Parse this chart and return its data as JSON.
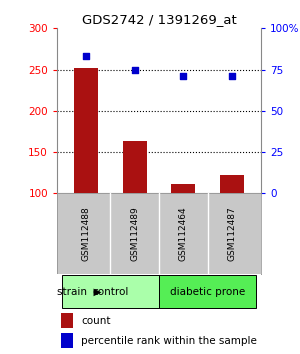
{
  "title": "GDS2742 / 1391269_at",
  "samples": [
    "GSM112488",
    "GSM112489",
    "GSM112464",
    "GSM112487"
  ],
  "counts": [
    252,
    163,
    111,
    122
  ],
  "percentiles": [
    83,
    75,
    71,
    71
  ],
  "ylim_left": [
    100,
    300
  ],
  "ylim_right": [
    0,
    100
  ],
  "yticks_left": [
    100,
    150,
    200,
    250,
    300
  ],
  "yticks_right": [
    0,
    25,
    50,
    75,
    100
  ],
  "yticklabels_right": [
    "0",
    "25",
    "50",
    "75",
    "100%"
  ],
  "bar_color": "#aa1111",
  "dot_color": "#0000cc",
  "bar_width": 0.5,
  "groups": [
    {
      "label": "control",
      "samples": [
        0,
        1
      ],
      "color": "#aaffaa"
    },
    {
      "label": "diabetic prone",
      "samples": [
        2,
        3
      ],
      "color": "#55ee55"
    }
  ],
  "group_label": "strain",
  "legend_count_label": "count",
  "legend_pct_label": "percentile rank within the sample",
  "bg_color": "#ffffff",
  "plot_bg_color": "#ffffff",
  "tick_label_gray_bg": "#c8c8c8",
  "dotted_lines": [
    150,
    200,
    250
  ]
}
